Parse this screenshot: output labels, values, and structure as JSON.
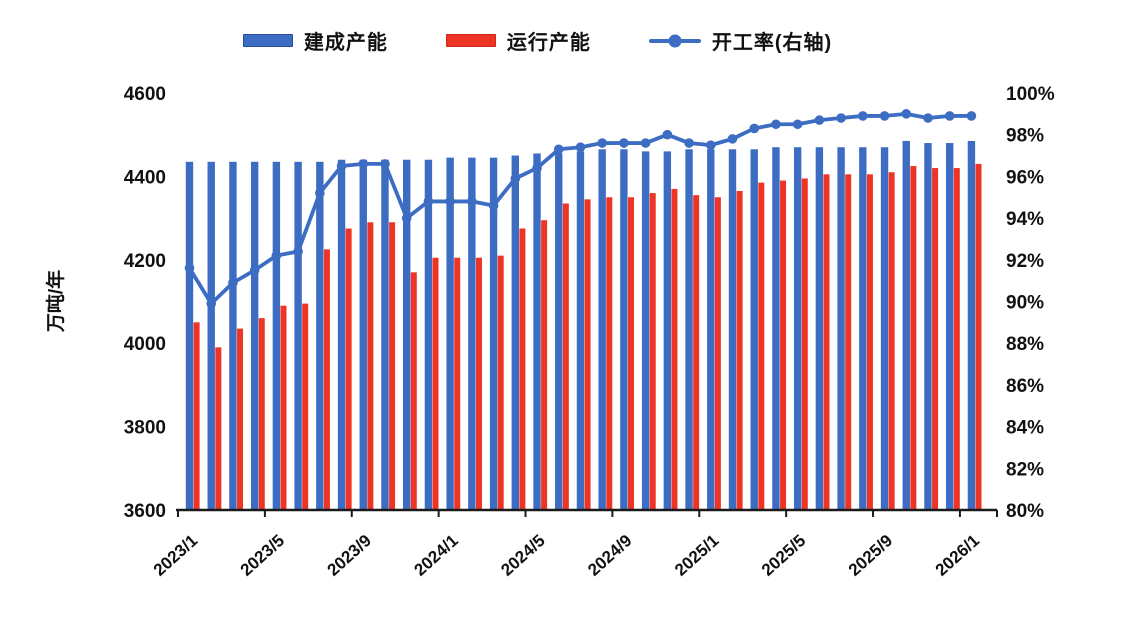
{
  "chart_data": {
    "type": "bar",
    "subtype": "bar+line combo",
    "title": "",
    "legend_position": "top",
    "grid": false,
    "categories": [
      "2023/1",
      "2023/2",
      "2023/3",
      "2023/4",
      "2023/5",
      "2023/6",
      "2023/7",
      "2023/8",
      "2023/9",
      "2023/10",
      "2023/11",
      "2023/12",
      "2024/1",
      "2024/2",
      "2024/3",
      "2024/4",
      "2024/5",
      "2024/6",
      "2024/7",
      "2024/8",
      "2024/9",
      "2024/10",
      "2024/11",
      "2024/12",
      "2025/1",
      "2025/2",
      "2025/3",
      "2025/4",
      "2025/5",
      "2025/6",
      "2025/7",
      "2025/8",
      "2025/9",
      "2025/10",
      "2025/11",
      "2025/12",
      "2026/1"
    ],
    "x_tick_labels": [
      "2023/1",
      "2023/5",
      "2023/9",
      "2024/1",
      "2024/5",
      "2024/9",
      "2025/1",
      "2025/5",
      "2025/9",
      "2026/1"
    ],
    "series": [
      {
        "name": "建成产能",
        "type": "bar",
        "y_axis": "left",
        "color": "#3d6cc3",
        "values": [
          4435,
          4435,
          4435,
          4435,
          4435,
          4435,
          4435,
          4440,
          4440,
          4440,
          4440,
          4440,
          4445,
          4445,
          4445,
          4450,
          4455,
          4455,
          4460,
          4465,
          4465,
          4460,
          4460,
          4465,
          4465,
          4465,
          4465,
          4470,
          4470,
          4470,
          4470,
          4470,
          4470,
          4485,
          4480,
          4480,
          4485
        ]
      },
      {
        "name": "运行产能",
        "type": "bar",
        "y_axis": "left",
        "color": "#ee3425",
        "values": [
          4050,
          3990,
          4035,
          4060,
          4090,
          4095,
          4225,
          4275,
          4290,
          4290,
          4170,
          4205,
          4205,
          4205,
          4210,
          4275,
          4295,
          4335,
          4345,
          4350,
          4350,
          4360,
          4370,
          4355,
          4350,
          4365,
          4385,
          4390,
          4395,
          4405,
          4405,
          4405,
          4410,
          4425,
          4420,
          4420,
          4430
        ]
      },
      {
        "name": "开工率(右轴)",
        "type": "line",
        "y_axis": "right",
        "color": "#3d6cc3",
        "values": [
          91.6,
          89.9,
          90.9,
          91.5,
          92.2,
          92.4,
          95.2,
          96.5,
          96.6,
          96.6,
          94.0,
          94.8,
          94.8,
          94.8,
          94.6,
          95.9,
          96.4,
          97.3,
          97.4,
          97.6,
          97.6,
          97.6,
          98.0,
          97.6,
          97.5,
          97.8,
          98.3,
          98.5,
          98.5,
          98.7,
          98.8,
          98.9,
          98.9,
          99.0,
          98.8,
          98.9,
          98.9
        ]
      }
    ],
    "left_axis": {
      "title": "万吨/年",
      "min": 3600,
      "max": 4600,
      "tick_step": 200,
      "ticks": [
        "3600",
        "3800",
        "4000",
        "4200",
        "4400",
        "4600"
      ]
    },
    "right_axis": {
      "title": "",
      "min": 80,
      "max": 100,
      "tick_step": 2,
      "ticks": [
        "80%",
        "82%",
        "84%",
        "86%",
        "88%",
        "90%",
        "92%",
        "94%",
        "96%",
        "98%",
        "100%"
      ]
    }
  }
}
